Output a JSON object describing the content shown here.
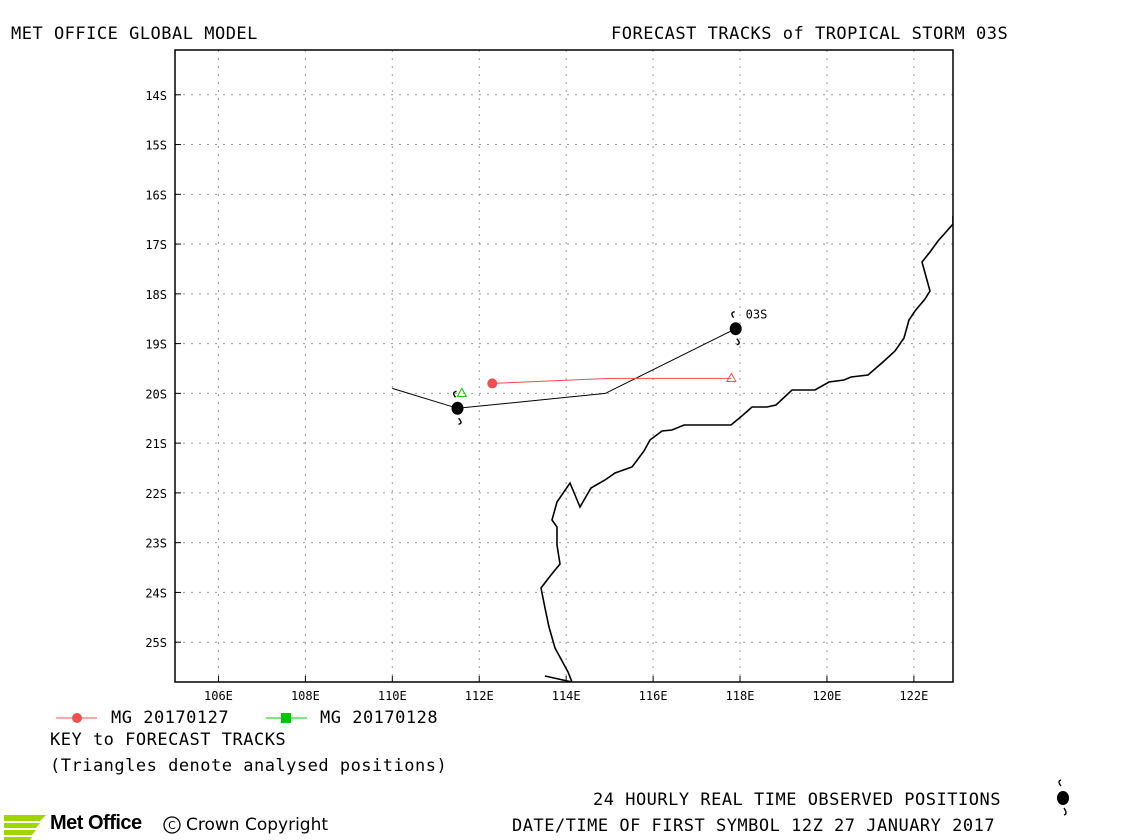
{
  "header": {
    "model_title": "MET OFFICE GLOBAL MODEL",
    "chart_title": "FORECAST TRACKS of TROPICAL STORM 03S"
  },
  "map": {
    "lon_range": [
      105,
      122.9
    ],
    "lat_range": [
      -13.1,
      -25.8
    ],
    "lat_ticks": [
      "14S",
      "15S",
      "16S",
      "17S",
      "18S",
      "19S",
      "20S",
      "21S",
      "22S",
      "23S",
      "24S",
      "25S"
    ],
    "lon_ticks": [
      "106E",
      "108E",
      "110E",
      "112E",
      "114E",
      "116E",
      "118E",
      "120E",
      "122E"
    ],
    "grid": true,
    "storm_label": "03S",
    "observed_track": [
      [
        110.0,
        -19.9
      ],
      [
        111.5,
        -20.3
      ],
      [
        114.9,
        -20.0
      ],
      [
        117.9,
        -18.7
      ]
    ],
    "observed_symbols": [
      [
        111.5,
        -20.3
      ],
      [
        117.9,
        -18.7
      ]
    ],
    "forecast_track_20170127": [
      [
        112.3,
        -19.8
      ],
      [
        115.0,
        -19.7
      ],
      [
        117.8,
        -19.7
      ]
    ],
    "analysed_20170127": [
      117.8,
      -19.7
    ],
    "analysed_20170128": [
      111.6,
      -20.0
    ],
    "colors": {
      "mg_20170127": "#f05050",
      "mg_20170128": "#00c800",
      "observed": "#000000",
      "grid": "#999999"
    }
  },
  "legend": {
    "series_1": "MG 20170127",
    "series_2": "MG 20170128",
    "key_title": "KEY to FORECAST TRACKS",
    "key_note": "(Triangles denote analysed positions)"
  },
  "footer": {
    "observed_note": "24 HOURLY REAL TIME OBSERVED POSITIONS",
    "first_symbol": "DATE/TIME OF FIRST SYMBOL 12Z 27 JANUARY 2017",
    "logo": "Met Office",
    "copyright": "Crown Copyright"
  }
}
